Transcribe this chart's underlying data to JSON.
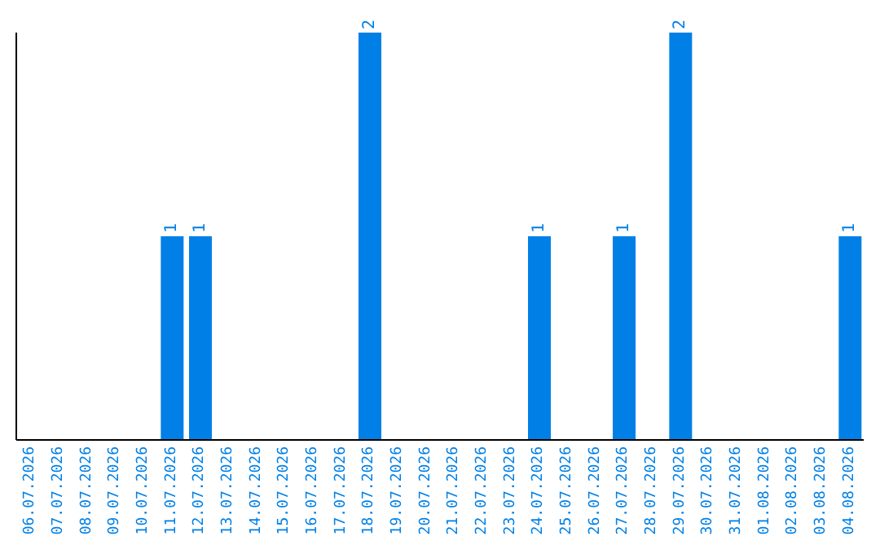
{
  "chart_data": {
    "type": "bar",
    "categories": [
      "06.07.2026",
      "07.07.2026",
      "08.07.2026",
      "09.07.2026",
      "10.07.2026",
      "11.07.2026",
      "12.07.2026",
      "13.07.2026",
      "14.07.2026",
      "15.07.2026",
      "16.07.2026",
      "17.07.2026",
      "18.07.2026",
      "19.07.2026",
      "20.07.2026",
      "21.07.2026",
      "22.07.2026",
      "23.07.2026",
      "24.07.2026",
      "25.07.2026",
      "26.07.2026",
      "27.07.2026",
      "28.07.2026",
      "29.07.2026",
      "30.07.2026",
      "31.07.2026",
      "01.08.2026",
      "02.08.2026",
      "03.08.2026",
      "04.08.2026"
    ],
    "values": [
      0,
      0,
      0,
      0,
      0,
      1,
      1,
      0,
      0,
      0,
      0,
      0,
      2,
      0,
      0,
      0,
      0,
      0,
      1,
      0,
      0,
      1,
      0,
      2,
      0,
      0,
      0,
      0,
      0,
      1
    ],
    "value_labels": [
      null,
      null,
      null,
      null,
      null,
      "1",
      "1",
      null,
      null,
      null,
      null,
      null,
      "2",
      null,
      null,
      null,
      null,
      null,
      "1",
      null,
      null,
      "1",
      null,
      "2",
      null,
      null,
      null,
      null,
      null,
      "1"
    ],
    "color": "#0080e6",
    "ylim": [
      0,
      2
    ],
    "grid": false,
    "legend": false
  }
}
